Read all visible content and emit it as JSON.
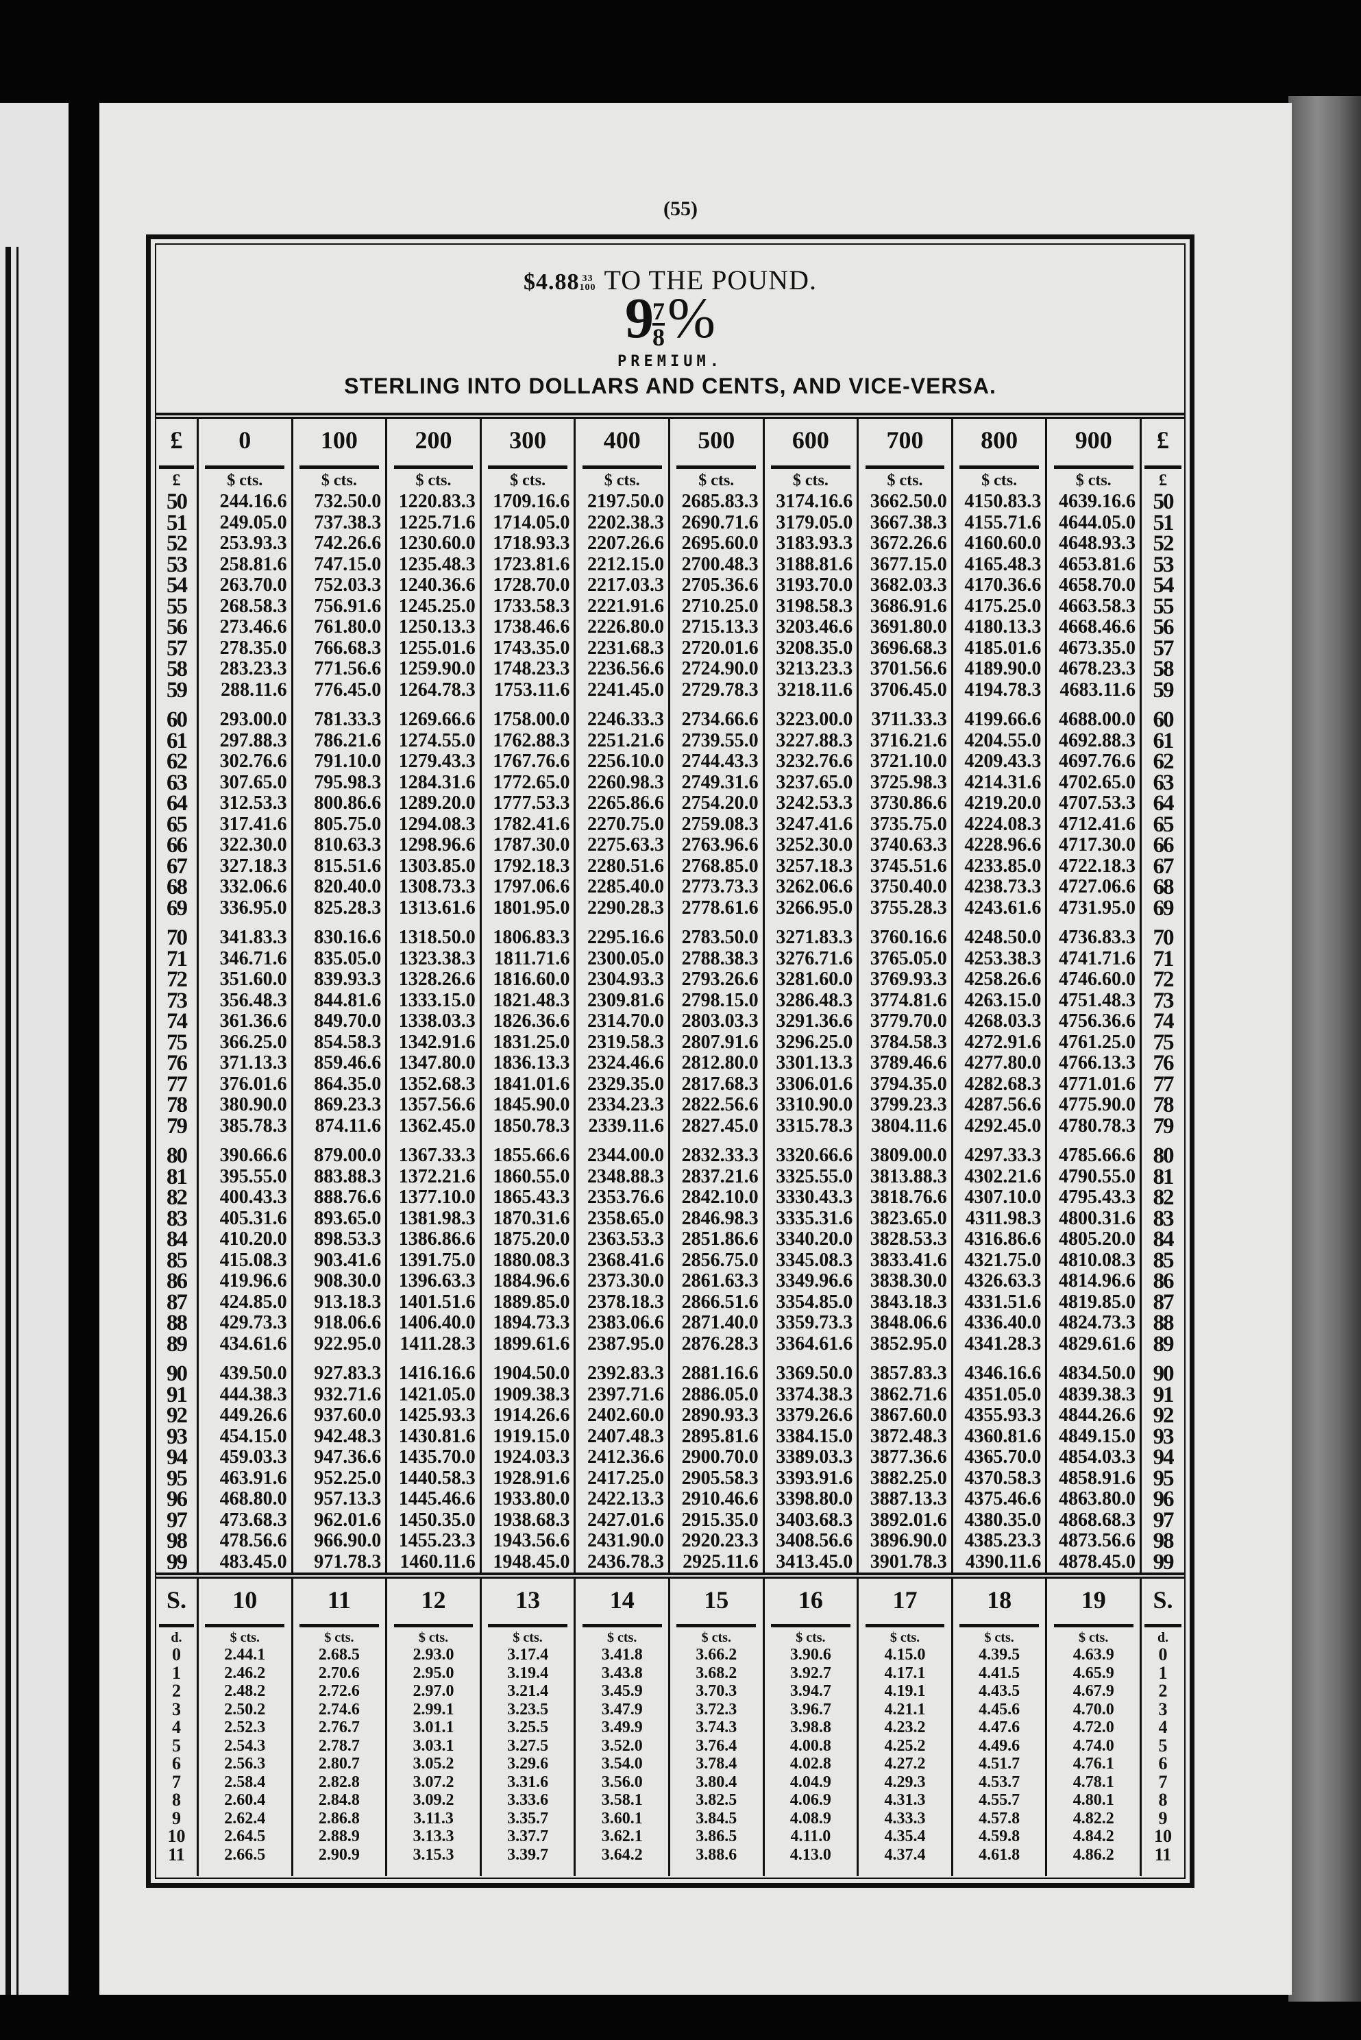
{
  "page_number": "(55)",
  "header": {
    "rate_prefix": "$4.88",
    "rate_fraction_num": "33",
    "rate_fraction_den": "100",
    "rate_suffix": "TO THE POUND.",
    "premium_whole": "9",
    "premium_num": "7",
    "premium_den": "8",
    "premium_sign": "%",
    "premium_label": "PREMIUM.",
    "subtitle": "STERLING INTO DOLLARS AND CENTS, AND VICE-VERSA."
  },
  "pounds_table": {
    "left_header": "£",
    "right_header": "£",
    "left_sub": "£",
    "right_sub": "£",
    "unit_label": "$ cts.",
    "columns": [
      "0",
      "100",
      "200",
      "300",
      "400",
      "500",
      "600",
      "700",
      "800",
      "900"
    ],
    "rows": [
      {
        "label": "50",
        "values": [
          "244.16.6",
          "732.50.0",
          "1220.83.3",
          "1709.16.6",
          "2197.50.0",
          "2685.83.3",
          "3174.16.6",
          "3662.50.0",
          "4150.83.3",
          "4639.16.6"
        ]
      },
      {
        "label": "51",
        "values": [
          "249.05.0",
          "737.38.3",
          "1225.71.6",
          "1714.05.0",
          "2202.38.3",
          "2690.71.6",
          "3179.05.0",
          "3667.38.3",
          "4155.71.6",
          "4644.05.0"
        ]
      },
      {
        "label": "52",
        "values": [
          "253.93.3",
          "742.26.6",
          "1230.60.0",
          "1718.93.3",
          "2207.26.6",
          "2695.60.0",
          "3183.93.3",
          "3672.26.6",
          "4160.60.0",
          "4648.93.3"
        ]
      },
      {
        "label": "53",
        "values": [
          "258.81.6",
          "747.15.0",
          "1235.48.3",
          "1723.81.6",
          "2212.15.0",
          "2700.48.3",
          "3188.81.6",
          "3677.15.0",
          "4165.48.3",
          "4653.81.6"
        ]
      },
      {
        "label": "54",
        "values": [
          "263.70.0",
          "752.03.3",
          "1240.36.6",
          "1728.70.0",
          "2217.03.3",
          "2705.36.6",
          "3193.70.0",
          "3682.03.3",
          "4170.36.6",
          "4658.70.0"
        ]
      },
      {
        "label": "55",
        "values": [
          "268.58.3",
          "756.91.6",
          "1245.25.0",
          "1733.58.3",
          "2221.91.6",
          "2710.25.0",
          "3198.58.3",
          "3686.91.6",
          "4175.25.0",
          "4663.58.3"
        ]
      },
      {
        "label": "56",
        "values": [
          "273.46.6",
          "761.80.0",
          "1250.13.3",
          "1738.46.6",
          "2226.80.0",
          "2715.13.3",
          "3203.46.6",
          "3691.80.0",
          "4180.13.3",
          "4668.46.6"
        ]
      },
      {
        "label": "57",
        "values": [
          "278.35.0",
          "766.68.3",
          "1255.01.6",
          "1743.35.0",
          "2231.68.3",
          "2720.01.6",
          "3208.35.0",
          "3696.68.3",
          "4185.01.6",
          "4673.35.0"
        ]
      },
      {
        "label": "58",
        "values": [
          "283.23.3",
          "771.56.6",
          "1259.90.0",
          "1748.23.3",
          "2236.56.6",
          "2724.90.0",
          "3213.23.3",
          "3701.56.6",
          "4189.90.0",
          "4678.23.3"
        ]
      },
      {
        "label": "59",
        "values": [
          "288.11.6",
          "776.45.0",
          "1264.78.3",
          "1753.11.6",
          "2241.45.0",
          "2729.78.3",
          "3218.11.6",
          "3706.45.0",
          "4194.78.3",
          "4683.11.6"
        ]
      },
      {
        "label": "60",
        "values": [
          "293.00.0",
          "781.33.3",
          "1269.66.6",
          "1758.00.0",
          "2246.33.3",
          "2734.66.6",
          "3223.00.0",
          "3711.33.3",
          "4199.66.6",
          "4688.00.0"
        ]
      },
      {
        "label": "61",
        "values": [
          "297.88.3",
          "786.21.6",
          "1274.55.0",
          "1762.88.3",
          "2251.21.6",
          "2739.55.0",
          "3227.88.3",
          "3716.21.6",
          "4204.55.0",
          "4692.88.3"
        ]
      },
      {
        "label": "62",
        "values": [
          "302.76.6",
          "791.10.0",
          "1279.43.3",
          "1767.76.6",
          "2256.10.0",
          "2744.43.3",
          "3232.76.6",
          "3721.10.0",
          "4209.43.3",
          "4697.76.6"
        ]
      },
      {
        "label": "63",
        "values": [
          "307.65.0",
          "795.98.3",
          "1284.31.6",
          "1772.65.0",
          "2260.98.3",
          "2749.31.6",
          "3237.65.0",
          "3725.98.3",
          "4214.31.6",
          "4702.65.0"
        ]
      },
      {
        "label": "64",
        "values": [
          "312.53.3",
          "800.86.6",
          "1289.20.0",
          "1777.53.3",
          "2265.86.6",
          "2754.20.0",
          "3242.53.3",
          "3730.86.6",
          "4219.20.0",
          "4707.53.3"
        ]
      },
      {
        "label": "65",
        "values": [
          "317.41.6",
          "805.75.0",
          "1294.08.3",
          "1782.41.6",
          "2270.75.0",
          "2759.08.3",
          "3247.41.6",
          "3735.75.0",
          "4224.08.3",
          "4712.41.6"
        ]
      },
      {
        "label": "66",
        "values": [
          "322.30.0",
          "810.63.3",
          "1298.96.6",
          "1787.30.0",
          "2275.63.3",
          "2763.96.6",
          "3252.30.0",
          "3740.63.3",
          "4228.96.6",
          "4717.30.0"
        ]
      },
      {
        "label": "67",
        "values": [
          "327.18.3",
          "815.51.6",
          "1303.85.0",
          "1792.18.3",
          "2280.51.6",
          "2768.85.0",
          "3257.18.3",
          "3745.51.6",
          "4233.85.0",
          "4722.18.3"
        ]
      },
      {
        "label": "68",
        "values": [
          "332.06.6",
          "820.40.0",
          "1308.73.3",
          "1797.06.6",
          "2285.40.0",
          "2773.73.3",
          "3262.06.6",
          "3750.40.0",
          "4238.73.3",
          "4727.06.6"
        ]
      },
      {
        "label": "69",
        "values": [
          "336.95.0",
          "825.28.3",
          "1313.61.6",
          "1801.95.0",
          "2290.28.3",
          "2778.61.6",
          "3266.95.0",
          "3755.28.3",
          "4243.61.6",
          "4731.95.0"
        ]
      },
      {
        "label": "70",
        "values": [
          "341.83.3",
          "830.16.6",
          "1318.50.0",
          "1806.83.3",
          "2295.16.6",
          "2783.50.0",
          "3271.83.3",
          "3760.16.6",
          "4248.50.0",
          "4736.83.3"
        ]
      },
      {
        "label": "71",
        "values": [
          "346.71.6",
          "835.05.0",
          "1323.38.3",
          "1811.71.6",
          "2300.05.0",
          "2788.38.3",
          "3276.71.6",
          "3765.05.0",
          "4253.38.3",
          "4741.71.6"
        ]
      },
      {
        "label": "72",
        "values": [
          "351.60.0",
          "839.93.3",
          "1328.26.6",
          "1816.60.0",
          "2304.93.3",
          "2793.26.6",
          "3281.60.0",
          "3769.93.3",
          "4258.26.6",
          "4746.60.0"
        ]
      },
      {
        "label": "73",
        "values": [
          "356.48.3",
          "844.81.6",
          "1333.15.0",
          "1821.48.3",
          "2309.81.6",
          "2798.15.0",
          "3286.48.3",
          "3774.81.6",
          "4263.15.0",
          "4751.48.3"
        ]
      },
      {
        "label": "74",
        "values": [
          "361.36.6",
          "849.70.0",
          "1338.03.3",
          "1826.36.6",
          "2314.70.0",
          "2803.03.3",
          "3291.36.6",
          "3779.70.0",
          "4268.03.3",
          "4756.36.6"
        ]
      },
      {
        "label": "75",
        "values": [
          "366.25.0",
          "854.58.3",
          "1342.91.6",
          "1831.25.0",
          "2319.58.3",
          "2807.91.6",
          "3296.25.0",
          "3784.58.3",
          "4272.91.6",
          "4761.25.0"
        ]
      },
      {
        "label": "76",
        "values": [
          "371.13.3",
          "859.46.6",
          "1347.80.0",
          "1836.13.3",
          "2324.46.6",
          "2812.80.0",
          "3301.13.3",
          "3789.46.6",
          "4277.80.0",
          "4766.13.3"
        ]
      },
      {
        "label": "77",
        "values": [
          "376.01.6",
          "864.35.0",
          "1352.68.3",
          "1841.01.6",
          "2329.35.0",
          "2817.68.3",
          "3306.01.6",
          "3794.35.0",
          "4282.68.3",
          "4771.01.6"
        ]
      },
      {
        "label": "78",
        "values": [
          "380.90.0",
          "869.23.3",
          "1357.56.6",
          "1845.90.0",
          "2334.23.3",
          "2822.56.6",
          "3310.90.0",
          "3799.23.3",
          "4287.56.6",
          "4775.90.0"
        ]
      },
      {
        "label": "79",
        "values": [
          "385.78.3",
          "874.11.6",
          "1362.45.0",
          "1850.78.3",
          "2339.11.6",
          "2827.45.0",
          "3315.78.3",
          "3804.11.6",
          "4292.45.0",
          "4780.78.3"
        ]
      },
      {
        "label": "80",
        "values": [
          "390.66.6",
          "879.00.0",
          "1367.33.3",
          "1855.66.6",
          "2344.00.0",
          "2832.33.3",
          "3320.66.6",
          "3809.00.0",
          "4297.33.3",
          "4785.66.6"
        ]
      },
      {
        "label": "81",
        "values": [
          "395.55.0",
          "883.88.3",
          "1372.21.6",
          "1860.55.0",
          "2348.88.3",
          "2837.21.6",
          "3325.55.0",
          "3813.88.3",
          "4302.21.6",
          "4790.55.0"
        ]
      },
      {
        "label": "82",
        "values": [
          "400.43.3",
          "888.76.6",
          "1377.10.0",
          "1865.43.3",
          "2353.76.6",
          "2842.10.0",
          "3330.43.3",
          "3818.76.6",
          "4307.10.0",
          "4795.43.3"
        ]
      },
      {
        "label": "83",
        "values": [
          "405.31.6",
          "893.65.0",
          "1381.98.3",
          "1870.31.6",
          "2358.65.0",
          "2846.98.3",
          "3335.31.6",
          "3823.65.0",
          "4311.98.3",
          "4800.31.6"
        ]
      },
      {
        "label": "84",
        "values": [
          "410.20.0",
          "898.53.3",
          "1386.86.6",
          "1875.20.0",
          "2363.53.3",
          "2851.86.6",
          "3340.20.0",
          "3828.53.3",
          "4316.86.6",
          "4805.20.0"
        ]
      },
      {
        "label": "85",
        "values": [
          "415.08.3",
          "903.41.6",
          "1391.75.0",
          "1880.08.3",
          "2368.41.6",
          "2856.75.0",
          "3345.08.3",
          "3833.41.6",
          "4321.75.0",
          "4810.08.3"
        ]
      },
      {
        "label": "86",
        "values": [
          "419.96.6",
          "908.30.0",
          "1396.63.3",
          "1884.96.6",
          "2373.30.0",
          "2861.63.3",
          "3349.96.6",
          "3838.30.0",
          "4326.63.3",
          "4814.96.6"
        ]
      },
      {
        "label": "87",
        "values": [
          "424.85.0",
          "913.18.3",
          "1401.51.6",
          "1889.85.0",
          "2378.18.3",
          "2866.51.6",
          "3354.85.0",
          "3843.18.3",
          "4331.51.6",
          "4819.85.0"
        ]
      },
      {
        "label": "88",
        "values": [
          "429.73.3",
          "918.06.6",
          "1406.40.0",
          "1894.73.3",
          "2383.06.6",
          "2871.40.0",
          "3359.73.3",
          "3848.06.6",
          "4336.40.0",
          "4824.73.3"
        ]
      },
      {
        "label": "89",
        "values": [
          "434.61.6",
          "922.95.0",
          "1411.28.3",
          "1899.61.6",
          "2387.95.0",
          "2876.28.3",
          "3364.61.6",
          "3852.95.0",
          "4341.28.3",
          "4829.61.6"
        ]
      },
      {
        "label": "90",
        "values": [
          "439.50.0",
          "927.83.3",
          "1416.16.6",
          "1904.50.0",
          "2392.83.3",
          "2881.16.6",
          "3369.50.0",
          "3857.83.3",
          "4346.16.6",
          "4834.50.0"
        ]
      },
      {
        "label": "91",
        "values": [
          "444.38.3",
          "932.71.6",
          "1421.05.0",
          "1909.38.3",
          "2397.71.6",
          "2886.05.0",
          "3374.38.3",
          "3862.71.6",
          "4351.05.0",
          "4839.38.3"
        ]
      },
      {
        "label": "92",
        "values": [
          "449.26.6",
          "937.60.0",
          "1425.93.3",
          "1914.26.6",
          "2402.60.0",
          "2890.93.3",
          "3379.26.6",
          "3867.60.0",
          "4355.93.3",
          "4844.26.6"
        ]
      },
      {
        "label": "93",
        "values": [
          "454.15.0",
          "942.48.3",
          "1430.81.6",
          "1919.15.0",
          "2407.48.3",
          "2895.81.6",
          "3384.15.0",
          "3872.48.3",
          "4360.81.6",
          "4849.15.0"
        ]
      },
      {
        "label": "94",
        "values": [
          "459.03.3",
          "947.36.6",
          "1435.70.0",
          "1924.03.3",
          "2412.36.6",
          "2900.70.0",
          "3389.03.3",
          "3877.36.6",
          "4365.70.0",
          "4854.03.3"
        ]
      },
      {
        "label": "95",
        "values": [
          "463.91.6",
          "952.25.0",
          "1440.58.3",
          "1928.91.6",
          "2417.25.0",
          "2905.58.3",
          "3393.91.6",
          "3882.25.0",
          "4370.58.3",
          "4858.91.6"
        ]
      },
      {
        "label": "96",
        "values": [
          "468.80.0",
          "957.13.3",
          "1445.46.6",
          "1933.80.0",
          "2422.13.3",
          "2910.46.6",
          "3398.80.0",
          "3887.13.3",
          "4375.46.6",
          "4863.80.0"
        ]
      },
      {
        "label": "97",
        "values": [
          "473.68.3",
          "962.01.6",
          "1450.35.0",
          "1938.68.3",
          "2427.01.6",
          "2915.35.0",
          "3403.68.3",
          "3892.01.6",
          "4380.35.0",
          "4868.68.3"
        ]
      },
      {
        "label": "98",
        "values": [
          "478.56.6",
          "966.90.0",
          "1455.23.3",
          "1943.56.6",
          "2431.90.0",
          "2920.23.3",
          "3408.56.6",
          "3896.90.0",
          "4385.23.3",
          "4873.56.6"
        ]
      },
      {
        "label": "99",
        "values": [
          "483.45.0",
          "971.78.3",
          "1460.11.6",
          "1948.45.0",
          "2436.78.3",
          "2925.11.6",
          "3413.45.0",
          "3901.78.3",
          "4390.11.6",
          "4878.45.0"
        ]
      }
    ]
  },
  "shillings_table": {
    "left_header": "S.",
    "right_header": "S.",
    "left_sub": "d.",
    "right_sub": "d.",
    "unit_label": "$ cts.",
    "columns": [
      "10",
      "11",
      "12",
      "13",
      "14",
      "15",
      "16",
      "17",
      "18",
      "19"
    ],
    "rows": [
      {
        "label": "0",
        "values": [
          "2.44.1",
          "2.68.5",
          "2.93.0",
          "3.17.4",
          "3.41.8",
          "3.66.2",
          "3.90.6",
          "4.15.0",
          "4.39.5",
          "4.63.9"
        ]
      },
      {
        "label": "1",
        "values": [
          "2.46.2",
          "2.70.6",
          "2.95.0",
          "3.19.4",
          "3.43.8",
          "3.68.2",
          "3.92.7",
          "4.17.1",
          "4.41.5",
          "4.65.9"
        ]
      },
      {
        "label": "2",
        "values": [
          "2.48.2",
          "2.72.6",
          "2.97.0",
          "3.21.4",
          "3.45.9",
          "3.70.3",
          "3.94.7",
          "4.19.1",
          "4.43.5",
          "4.67.9"
        ]
      },
      {
        "label": "3",
        "values": [
          "2.50.2",
          "2.74.6",
          "2.99.1",
          "3.23.5",
          "3.47.9",
          "3.72.3",
          "3.96.7",
          "4.21.1",
          "4.45.6",
          "4.70.0"
        ]
      },
      {
        "label": "4",
        "values": [
          "2.52.3",
          "2.76.7",
          "3.01.1",
          "3.25.5",
          "3.49.9",
          "3.74.3",
          "3.98.8",
          "4.23.2",
          "4.47.6",
          "4.72.0"
        ]
      },
      {
        "label": "5",
        "values": [
          "2.54.3",
          "2.78.7",
          "3.03.1",
          "3.27.5",
          "3.52.0",
          "3.76.4",
          "4.00.8",
          "4.25.2",
          "4.49.6",
          "4.74.0"
        ]
      },
      {
        "label": "6",
        "values": [
          "2.56.3",
          "2.80.7",
          "3.05.2",
          "3.29.6",
          "3.54.0",
          "3.78.4",
          "4.02.8",
          "4.27.2",
          "4.51.7",
          "4.76.1"
        ]
      },
      {
        "label": "7",
        "values": [
          "2.58.4",
          "2.82.8",
          "3.07.2",
          "3.31.6",
          "3.56.0",
          "3.80.4",
          "4.04.9",
          "4.29.3",
          "4.53.7",
          "4.78.1"
        ]
      },
      {
        "label": "8",
        "values": [
          "2.60.4",
          "2.84.8",
          "3.09.2",
          "3.33.6",
          "3.58.1",
          "3.82.5",
          "4.06.9",
          "4.31.3",
          "4.55.7",
          "4.80.1"
        ]
      },
      {
        "label": "9",
        "values": [
          "2.62.4",
          "2.86.8",
          "3.11.3",
          "3.35.7",
          "3.60.1",
          "3.84.5",
          "4.08.9",
          "4.33.3",
          "4.57.8",
          "4.82.2"
        ]
      },
      {
        "label": "10",
        "values": [
          "2.64.5",
          "2.88.9",
          "3.13.3",
          "3.37.7",
          "3.62.1",
          "3.86.5",
          "4.11.0",
          "4.35.4",
          "4.59.8",
          "4.84.2"
        ]
      },
      {
        "label": "11",
        "values": [
          "2.66.5",
          "2.90.9",
          "3.15.3",
          "3.39.7",
          "3.64.2",
          "3.88.6",
          "4.13.0",
          "4.37.4",
          "4.61.8",
          "4.86.2"
        ]
      }
    ]
  }
}
